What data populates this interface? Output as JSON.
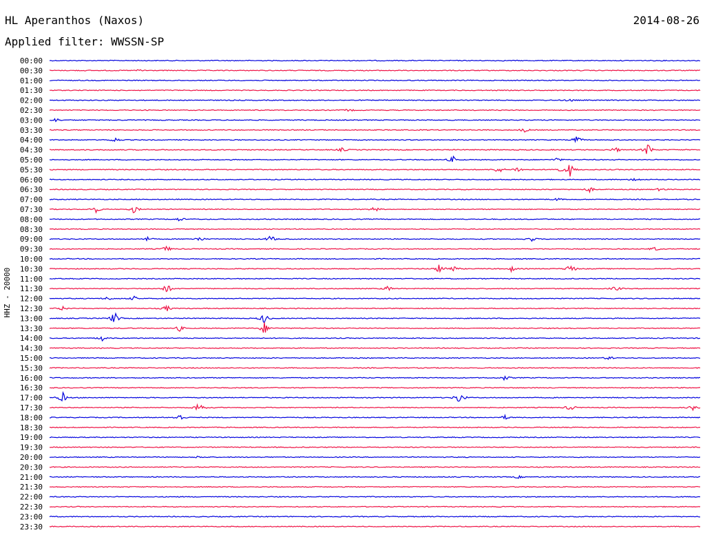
{
  "header": {
    "station": "HL Aperanthos (Naxos)",
    "date": "2014-08-26",
    "filter_label": "Applied filter:",
    "filter_value": "WWSSN-SP"
  },
  "colors": {
    "trace_a": "#0000dd",
    "trace_b": "#ee1144",
    "background": "#ffffff",
    "text": "#000000"
  },
  "chart_data": {
    "type": "line",
    "title": "HL Aperanthos (Naxos)",
    "ylabel": "HHZ - 20000",
    "xlabel": "",
    "row_interval_minutes": 30,
    "colors_alternate": [
      "#0000dd",
      "#ee1144"
    ],
    "rows": [
      {
        "time": "00:00",
        "events": []
      },
      {
        "time": "00:30",
        "events": [
          {
            "x": 0.14,
            "amp": 2
          }
        ]
      },
      {
        "time": "01:00",
        "events": []
      },
      {
        "time": "01:30",
        "events": []
      },
      {
        "time": "02:00",
        "events": [
          {
            "x": 0.8,
            "amp": 2
          }
        ]
      },
      {
        "time": "02:30",
        "events": [
          {
            "x": 0.46,
            "amp": 2
          }
        ]
      },
      {
        "time": "03:00",
        "events": [
          {
            "x": 0.01,
            "amp": 3
          }
        ]
      },
      {
        "time": "03:30",
        "events": [
          {
            "x": 0.73,
            "amp": 3
          }
        ]
      },
      {
        "time": "04:00",
        "events": [
          {
            "x": 0.1,
            "amp": 4
          },
          {
            "x": 0.81,
            "amp": 6
          }
        ]
      },
      {
        "time": "04:30",
        "events": [
          {
            "x": 0.45,
            "amp": 3
          },
          {
            "x": 0.87,
            "amp": 4
          },
          {
            "x": 0.92,
            "amp": 10
          }
        ]
      },
      {
        "time": "05:00",
        "events": [
          {
            "x": 0.62,
            "amp": 5
          },
          {
            "x": 0.78,
            "amp": 3
          }
        ]
      },
      {
        "time": "05:30",
        "events": [
          {
            "x": 0.69,
            "amp": 6
          },
          {
            "x": 0.72,
            "amp": 5
          },
          {
            "x": 0.78,
            "amp": 5
          },
          {
            "x": 0.8,
            "amp": 10
          }
        ]
      },
      {
        "time": "06:00",
        "events": [
          {
            "x": 0.9,
            "amp": 3
          }
        ]
      },
      {
        "time": "06:30",
        "events": [
          {
            "x": 0.83,
            "amp": 4
          },
          {
            "x": 0.94,
            "amp": 3
          }
        ]
      },
      {
        "time": "07:00",
        "events": [
          {
            "x": 0.78,
            "amp": 2
          }
        ]
      },
      {
        "time": "07:30",
        "events": [
          {
            "x": 0.07,
            "amp": 6
          },
          {
            "x": 0.13,
            "amp": 6
          },
          {
            "x": 0.5,
            "amp": 4
          }
        ]
      },
      {
        "time": "08:00",
        "events": [
          {
            "x": 0.2,
            "amp": 3
          }
        ]
      },
      {
        "time": "08:30",
        "events": []
      },
      {
        "time": "09:00",
        "events": [
          {
            "x": 0.15,
            "amp": 3
          },
          {
            "x": 0.23,
            "amp": 4
          },
          {
            "x": 0.34,
            "amp": 6
          },
          {
            "x": 0.74,
            "amp": 4
          }
        ]
      },
      {
        "time": "09:30",
        "events": [
          {
            "x": 0.18,
            "amp": 5
          },
          {
            "x": 0.93,
            "amp": 3
          }
        ]
      },
      {
        "time": "10:00",
        "events": []
      },
      {
        "time": "10:30",
        "events": [
          {
            "x": 0.6,
            "amp": 8
          },
          {
            "x": 0.62,
            "amp": 5
          },
          {
            "x": 0.71,
            "amp": 4
          },
          {
            "x": 0.8,
            "amp": 8
          }
        ]
      },
      {
        "time": "11:00",
        "events": []
      },
      {
        "time": "11:30",
        "events": [
          {
            "x": 0.18,
            "amp": 8
          },
          {
            "x": 0.52,
            "amp": 4
          },
          {
            "x": 0.87,
            "amp": 4
          }
        ]
      },
      {
        "time": "12:00",
        "events": [
          {
            "x": 0.09,
            "amp": 3
          },
          {
            "x": 0.13,
            "amp": 3
          }
        ]
      },
      {
        "time": "12:30",
        "events": [
          {
            "x": 0.02,
            "amp": 3
          },
          {
            "x": 0.18,
            "amp": 5
          }
        ]
      },
      {
        "time": "13:00",
        "events": [
          {
            "x": 0.1,
            "amp": 10
          },
          {
            "x": 0.33,
            "amp": 8
          }
        ]
      },
      {
        "time": "13:30",
        "events": [
          {
            "x": 0.2,
            "amp": 4
          },
          {
            "x": 0.33,
            "amp": 9
          }
        ]
      },
      {
        "time": "14:00",
        "events": [
          {
            "x": 0.08,
            "amp": 4
          }
        ]
      },
      {
        "time": "14:30",
        "events": []
      },
      {
        "time": "15:00",
        "events": [
          {
            "x": 0.86,
            "amp": 3
          }
        ]
      },
      {
        "time": "15:30",
        "events": []
      },
      {
        "time": "16:00",
        "events": [
          {
            "x": 0.7,
            "amp": 4
          }
        ]
      },
      {
        "time": "16:30",
        "events": []
      },
      {
        "time": "17:00",
        "events": [
          {
            "x": 0.02,
            "amp": 8
          },
          {
            "x": 0.63,
            "amp": 10
          }
        ]
      },
      {
        "time": "17:30",
        "events": [
          {
            "x": 0.23,
            "amp": 10
          },
          {
            "x": 0.8,
            "amp": 5
          },
          {
            "x": 0.99,
            "amp": 5
          }
        ]
      },
      {
        "time": "18:00",
        "events": [
          {
            "x": 0.2,
            "amp": 6
          },
          {
            "x": 0.7,
            "amp": 3
          }
        ]
      },
      {
        "time": "18:30",
        "events": []
      },
      {
        "time": "19:00",
        "events": []
      },
      {
        "time": "19:30",
        "events": []
      },
      {
        "time": "20:00",
        "events": [
          {
            "x": 0.23,
            "amp": 2
          }
        ]
      },
      {
        "time": "20:30",
        "events": []
      },
      {
        "time": "21:00",
        "events": [
          {
            "x": 0.72,
            "amp": 2
          }
        ]
      },
      {
        "time": "21:30",
        "events": []
      },
      {
        "time": "22:00",
        "events": []
      },
      {
        "time": "22:30",
        "events": []
      },
      {
        "time": "23:00",
        "events": []
      },
      {
        "time": "23:30",
        "events": []
      }
    ]
  }
}
